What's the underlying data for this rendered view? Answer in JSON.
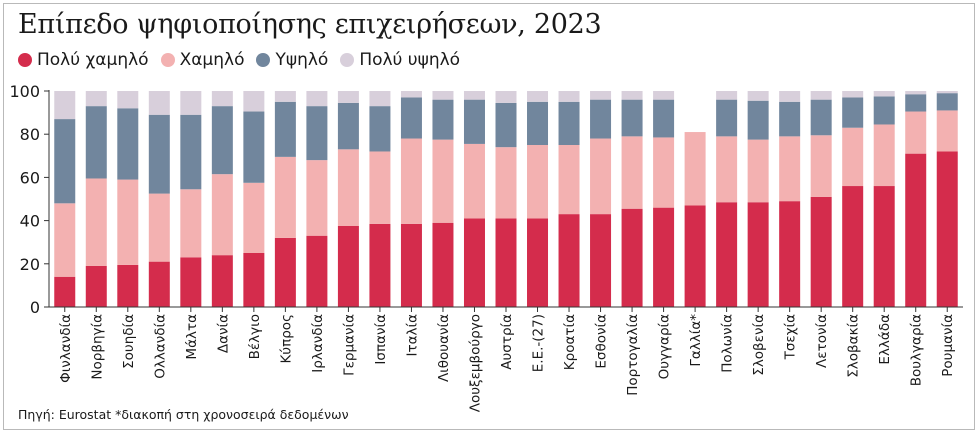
{
  "title": "Επίπεδο ψηφιοποίησης επιχειρήσεων, 2023",
  "source": "Πηγή: Eurostat *διακοπή στη χρονοσειρά δεδομένων",
  "colors": {
    "very_low": "#d42c4c",
    "low": "#f3b1b1",
    "high": "#71869d",
    "very_high": "#d8cfdb",
    "axis": "#333333",
    "grid": "#cfcfcf"
  },
  "chart_data": {
    "type": "bar",
    "stacked": true,
    "title": "Επίπεδο ψηφιοποίησης επιχειρήσεων, 2023",
    "ylim": [
      0,
      100
    ],
    "yticks": [
      0,
      20,
      40,
      60,
      80,
      100
    ],
    "grid": false,
    "legend": "top-left",
    "categories": [
      "Φινλανδία",
      "Νορβηγία",
      "Σουηδία",
      "Ολλανδία",
      "Μάλτα",
      "Δανία",
      "Βέλγιο",
      "Κύπρος",
      "Ιρλανδία",
      "Γερμανία",
      "Ισπανία",
      "Ιταλία",
      "Λιθουανία",
      "Λουξεμβούργο",
      "Αυστρία",
      "Ε.Ε.-(27)",
      "Κροατία",
      "Εσθονία",
      "Πορτογαλία",
      "Ουγγαρία",
      "Γαλλία*",
      "Πολωνία",
      "Σλοβενία",
      "Τσεχία",
      "Λετονία",
      "Σλοβακία",
      "Ελλάδα",
      "Βουλγαρία",
      "Ρουμανία"
    ],
    "series": [
      {
        "name": "Πολύ χαμηλό",
        "color": "#d42c4c",
        "values": [
          14,
          19,
          19.5,
          21,
          23,
          24,
          25,
          32,
          33,
          37.5,
          38.5,
          38.5,
          39,
          41,
          41,
          41,
          43,
          43,
          45.5,
          46,
          47,
          48.5,
          48.5,
          49,
          51,
          56,
          56,
          71,
          72
        ]
      },
      {
        "name": "Χαμηλό",
        "color": "#f3b1b1",
        "values": [
          34,
          40.5,
          39.5,
          31.5,
          31.5,
          37.5,
          32.5,
          37.5,
          35,
          35.5,
          33.5,
          39.5,
          38.5,
          34.5,
          33,
          34,
          32,
          35,
          33.5,
          32.5,
          34,
          30.5,
          29,
          30,
          28.5,
          27,
          28.5,
          19.5,
          19
        ]
      },
      {
        "name": "Υψηλό",
        "color": "#71869d",
        "values": [
          39,
          33.5,
          33,
          36.5,
          34.5,
          31.5,
          33,
          25.5,
          25,
          21.5,
          21,
          19,
          18.5,
          20.5,
          20.5,
          20,
          20,
          18,
          17,
          17.5,
          0,
          17,
          18,
          16,
          16.5,
          14,
          13,
          8,
          8
        ]
      },
      {
        "name": "Πολύ υψηλό",
        "color": "#d8cfdb",
        "values": [
          13,
          7,
          8,
          11,
          11,
          7,
          9.5,
          5,
          7,
          5.5,
          7,
          3,
          4,
          4,
          5.5,
          5,
          5,
          4,
          4,
          4,
          0,
          4,
          4.5,
          5,
          4,
          3,
          2.5,
          1.5,
          1
        ]
      }
    ]
  }
}
